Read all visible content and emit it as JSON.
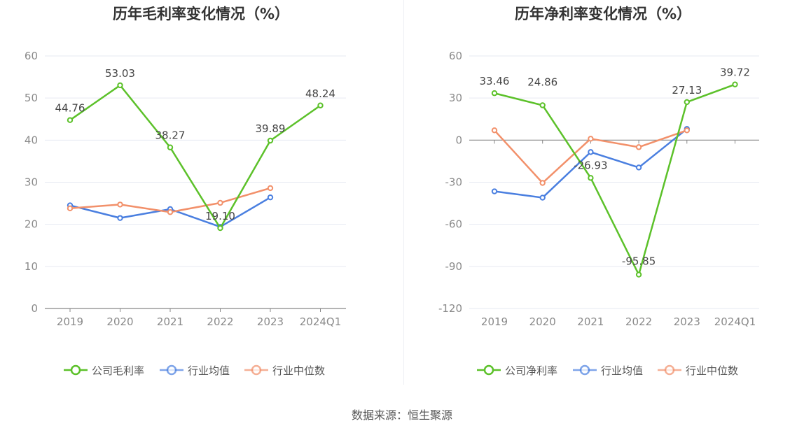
{
  "source": "数据来源：恒生聚源",
  "colors": {
    "company": "#5cc12a",
    "industry_avg": "#4a7fe0",
    "industry_median": "#f2906a"
  },
  "chart_data": [
    {
      "type": "line",
      "title": "历年毛利率变化情况（%）",
      "categories": [
        "2019",
        "2020",
        "2021",
        "2022",
        "2023",
        "2024Q1"
      ],
      "ylim": [
        0,
        60
      ],
      "yticks": [
        0,
        10,
        20,
        30,
        40,
        50,
        60
      ],
      "grid": true,
      "legend_position": "bottom",
      "series": [
        {
          "name": "公司毛利率",
          "color": "#5cc12a",
          "values": [
            44.76,
            53.03,
            38.27,
            19.1,
            39.89,
            48.24
          ],
          "labels": [
            "44.76",
            "53.03",
            "38.27",
            "19.10",
            "39.89",
            "48.24"
          ]
        },
        {
          "name": "行业均值",
          "color": "#4a7fe0",
          "values": [
            24.5,
            21.5,
            23.6,
            19.4,
            26.4,
            null
          ]
        },
        {
          "name": "行业中位数",
          "color": "#f2906a",
          "values": [
            23.8,
            24.7,
            22.9,
            25.1,
            28.6,
            null
          ]
        }
      ]
    },
    {
      "type": "line",
      "title": "历年净利率变化情况（%）",
      "categories": [
        "2019",
        "2020",
        "2021",
        "2022",
        "2023",
        "2024Q1"
      ],
      "ylim": [
        -120,
        60
      ],
      "yticks": [
        -120,
        -90,
        -60,
        -30,
        0,
        30,
        60
      ],
      "grid": true,
      "legend_position": "bottom",
      "series": [
        {
          "name": "公司净利率",
          "color": "#5cc12a",
          "values": [
            33.46,
            24.86,
            -26.93,
            -95.85,
            27.13,
            39.72
          ],
          "labels": [
            "33.46",
            "24.86",
            "-26.93",
            "-95.85",
            "27.13",
            "39.72"
          ]
        },
        {
          "name": "行业均值",
          "color": "#4a7fe0",
          "values": [
            -36.5,
            -41,
            -8.5,
            -19.5,
            8,
            null
          ]
        },
        {
          "name": "行业中位数",
          "color": "#f2906a",
          "values": [
            7,
            -30.5,
            1,
            -5,
            7,
            null
          ]
        }
      ]
    }
  ]
}
